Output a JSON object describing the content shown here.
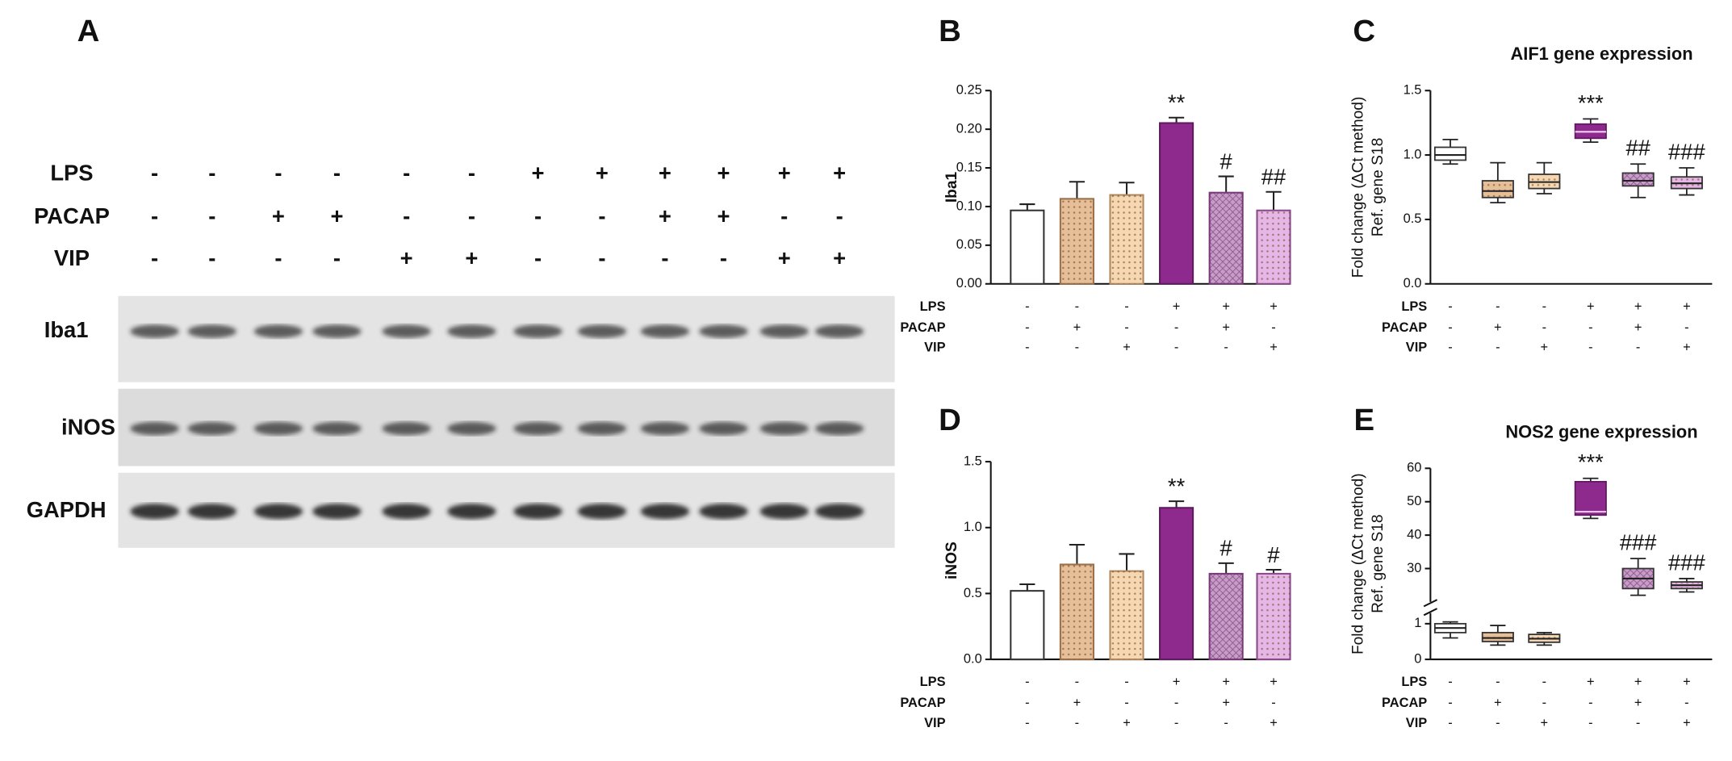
{
  "blot": {
    "panel": "A",
    "conditions": [
      {
        "name": "LPS",
        "signs": [
          "-",
          "-",
          "-",
          "-",
          "-",
          "-",
          "+",
          "+",
          "+",
          "+",
          "+",
          "+"
        ]
      },
      {
        "name": "PACAP",
        "signs": [
          "-",
          "-",
          "+",
          "+",
          "-",
          "-",
          "-",
          "-",
          "+",
          "+",
          "-",
          "-"
        ]
      },
      {
        "name": "VIP",
        "signs": [
          "-",
          "-",
          "-",
          "-",
          "+",
          "+",
          "-",
          "-",
          "-",
          "-",
          "+",
          "+"
        ]
      }
    ],
    "bands": [
      "Iba1",
      "iNOS",
      "GAPDH"
    ]
  },
  "chart_data": [
    {
      "type": "bar",
      "panel": "B",
      "ylabel": [
        "Iba1"
      ],
      "values": [
        0.095,
        0.11,
        0.115,
        0.208,
        0.118,
        0.095
      ],
      "errors": [
        0.008,
        0.022,
        0.016,
        0.007,
        0.021,
        0.024
      ],
      "annotations": [
        null,
        null,
        null,
        "**",
        "#",
        "##"
      ],
      "ylim": [
        0,
        0.25
      ],
      "yticks": [
        {
          "value": 0,
          "label": "0.00"
        },
        0.05,
        {
          "value": 0.1,
          "label": "0.10"
        },
        0.15,
        {
          "value": 0.2,
          "label": "0.20"
        },
        0.25
      ],
      "colors": [
        "#ffffff",
        "#e6bf98",
        "#f7d7b2",
        "#8e2a8e",
        "#c99bc9",
        "#e6b6e6"
      ],
      "patterns": [
        "none",
        "dots",
        "dots",
        "none",
        "weave",
        "dots"
      ],
      "edge_colors": [
        "#333333",
        "#9a6e48",
        "#b08860",
        "#5e1a5e",
        "#7a3a7a",
        "#8a4a8a"
      ],
      "conditions": [
        {
          "name": "LPS",
          "signs": [
            "-",
            "-",
            "-",
            "+",
            "+",
            "+"
          ]
        },
        {
          "name": "PACAP",
          "signs": [
            "-",
            "+",
            "-",
            "-",
            "+",
            "-"
          ]
        },
        {
          "name": "VIP",
          "signs": [
            "-",
            "-",
            "+",
            "-",
            "-",
            "+"
          ]
        }
      ]
    },
    {
      "type": "box",
      "panel": "C",
      "title": "AIF1 gene expression",
      "ylabel": [
        "Fold change (ΔCt method)",
        "Ref. gene S18"
      ],
      "boxes": [
        {
          "min": 0.93,
          "q1": 0.96,
          "median": 1.0,
          "q3": 1.06,
          "max": 1.12
        },
        {
          "min": 0.63,
          "q1": 0.67,
          "median": 0.72,
          "q3": 0.8,
          "max": 0.94
        },
        {
          "min": 0.7,
          "q1": 0.74,
          "median": 0.79,
          "q3": 0.85,
          "max": 0.94
        },
        {
          "min": 1.1,
          "q1": 1.13,
          "median": 1.18,
          "q3": 1.24,
          "max": 1.28
        },
        {
          "min": 0.67,
          "q1": 0.76,
          "median": 0.8,
          "q3": 0.86,
          "max": 0.93
        },
        {
          "min": 0.69,
          "q1": 0.74,
          "median": 0.78,
          "q3": 0.83,
          "max": 0.9
        }
      ],
      "annotations": [
        null,
        null,
        null,
        "***",
        "##",
        "###"
      ],
      "ylim": [
        0,
        1.5
      ],
      "yticks": [
        {
          "value": 0,
          "label": "0.0"
        },
        0.5,
        {
          "value": 1,
          "label": "1.0"
        },
        1.5
      ],
      "colors": [
        "#ffffff",
        "#e6bf98",
        "#f7d7b2",
        "#8e2a8e",
        "#c99bc9",
        "#e6b6e6"
      ],
      "patterns": [
        "none",
        "dots",
        "dots",
        "none",
        "weave",
        "dots"
      ],
      "edge_colors": [
        "#333333",
        "#9a6e48",
        "#b08860",
        "#5e1a5e",
        "#7a3a7a",
        "#8a4a8a"
      ],
      "conditions": [
        {
          "name": "LPS",
          "signs": [
            "-",
            "-",
            "-",
            "+",
            "+",
            "+"
          ]
        },
        {
          "name": "PACAP",
          "signs": [
            "-",
            "+",
            "-",
            "-",
            "+",
            "-"
          ]
        },
        {
          "name": "VIP",
          "signs": [
            "-",
            "-",
            "+",
            "-",
            "-",
            "+"
          ]
        }
      ]
    },
    {
      "type": "bar",
      "panel": "D",
      "ylabel": [
        "iNOS"
      ],
      "values": [
        0.52,
        0.72,
        0.67,
        1.15,
        0.65,
        0.65
      ],
      "errors": [
        0.05,
        0.15,
        0.13,
        0.05,
        0.08,
        0.03
      ],
      "annotations": [
        null,
        null,
        null,
        "**",
        "#",
        "#"
      ],
      "ylim": [
        0,
        1.5
      ],
      "yticks": [
        {
          "value": 0,
          "label": "0.0"
        },
        0.5,
        {
          "value": 1,
          "label": "1.0"
        },
        1.5
      ],
      "colors": [
        "#ffffff",
        "#e6bf98",
        "#f7d7b2",
        "#8e2a8e",
        "#c99bc9",
        "#e6b6e6"
      ],
      "patterns": [
        "none",
        "dots",
        "dots",
        "none",
        "weave",
        "dots"
      ],
      "edge_colors": [
        "#333333",
        "#9a6e48",
        "#b08860",
        "#5e1a5e",
        "#7a3a7a",
        "#8a4a8a"
      ],
      "conditions": [
        {
          "name": "LPS",
          "signs": [
            "-",
            "-",
            "-",
            "+",
            "+",
            "+"
          ]
        },
        {
          "name": "PACAP",
          "signs": [
            "-",
            "+",
            "-",
            "-",
            "+",
            "-"
          ]
        },
        {
          "name": "VIP",
          "signs": [
            "-",
            "-",
            "+",
            "-",
            "-",
            "+"
          ]
        }
      ]
    },
    {
      "type": "box",
      "panel": "E",
      "title": "NOS2 gene expression",
      "ylabel": [
        "Fold change (ΔCt method)",
        "Ref. gene S18"
      ],
      "boxes": [
        {
          "min": 0.6,
          "q1": 0.75,
          "median": 0.88,
          "q3": 1.0,
          "max": 1.05
        },
        {
          "min": 0.4,
          "q1": 0.5,
          "median": 0.6,
          "q3": 0.75,
          "max": 0.95
        },
        {
          "min": 0.4,
          "q1": 0.48,
          "median": 0.58,
          "q3": 0.7,
          "max": 0.75
        },
        {
          "min": 45,
          "q1": 46,
          "median": 47,
          "q3": 56,
          "max": 57
        },
        {
          "min": 22,
          "q1": 24,
          "median": 27,
          "q3": 30,
          "max": 33
        },
        {
          "min": 23,
          "q1": 24,
          "median": 25,
          "q3": 26,
          "max": 27
        }
      ],
      "annotations": [
        null,
        null,
        null,
        "***",
        "###",
        "###"
      ],
      "ylim": [
        [
          0,
          1.3
        ],
        [
          20,
          60
        ]
      ],
      "yticks": [
        0,
        1,
        30,
        40,
        50,
        60
      ],
      "colors": [
        "#ffffff",
        "#e6bf98",
        "#f7d7b2",
        "#8e2a8e",
        "#c99bc9",
        "#e6b6e6"
      ],
      "patterns": [
        "none",
        "dots",
        "dots",
        "none",
        "weave",
        "dots"
      ],
      "edge_colors": [
        "#333333",
        "#9a6e48",
        "#b08860",
        "#5e1a5e",
        "#7a3a7a",
        "#8a4a8a"
      ],
      "conditions": [
        {
          "name": "LPS",
          "signs": [
            "-",
            "-",
            "-",
            "+",
            "+",
            "+"
          ]
        },
        {
          "name": "PACAP",
          "signs": [
            "-",
            "+",
            "-",
            "-",
            "+",
            "-"
          ]
        },
        {
          "name": "VIP",
          "signs": [
            "-",
            "-",
            "+",
            "-",
            "-",
            "+"
          ]
        }
      ]
    }
  ]
}
